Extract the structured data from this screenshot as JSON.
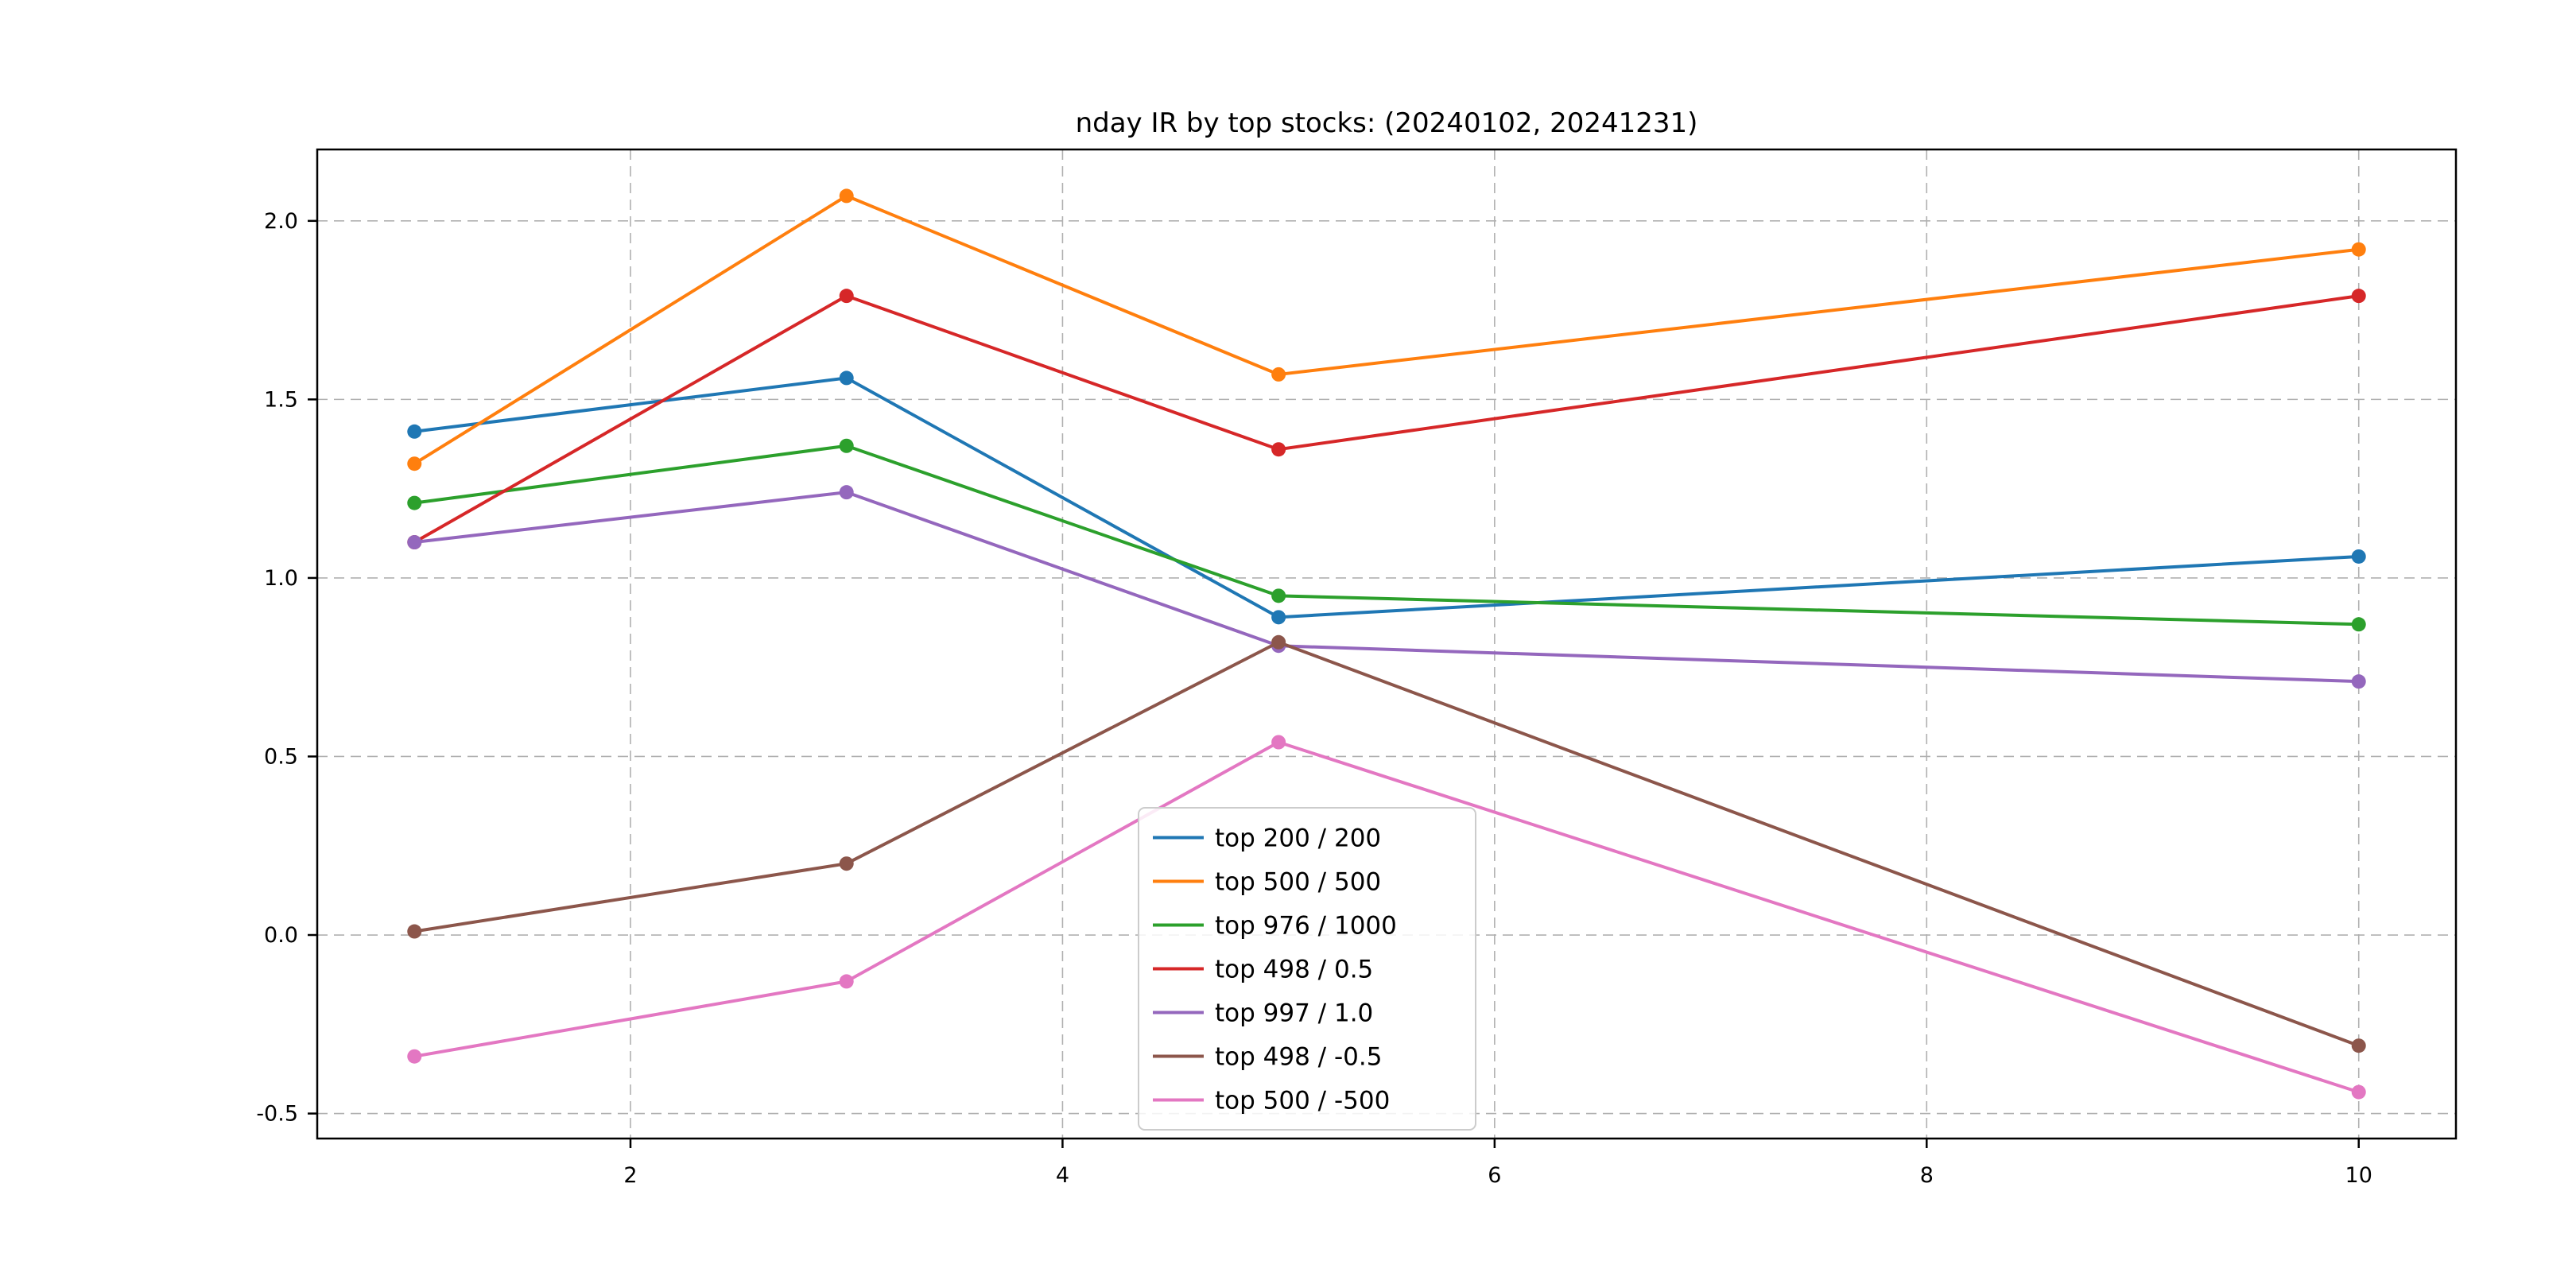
{
  "chart_data": {
    "type": "line",
    "title": "nday IR by top stocks: (20240102, 20241231)",
    "x": [
      1,
      3,
      5,
      10
    ],
    "series": [
      {
        "name": "top 200 / 200",
        "color": "#1f77b4",
        "values": [
          1.41,
          1.56,
          0.89,
          1.06
        ]
      },
      {
        "name": "top 500 / 500",
        "color": "#ff7f0e",
        "values": [
          1.32,
          2.07,
          1.57,
          1.92
        ]
      },
      {
        "name": "top 976 / 1000",
        "color": "#2ca02c",
        "values": [
          1.21,
          1.37,
          0.95,
          0.87
        ]
      },
      {
        "name": "top 498 / 0.5",
        "color": "#d62728",
        "values": [
          1.1,
          1.79,
          1.36,
          1.79
        ]
      },
      {
        "name": "top 997 / 1.0",
        "color": "#9467bd",
        "values": [
          1.1,
          1.24,
          0.81,
          0.71
        ]
      },
      {
        "name": "top 498 / -0.5",
        "color": "#8c564b",
        "values": [
          0.01,
          0.2,
          0.82,
          -0.31
        ]
      },
      {
        "name": "top 500 / -500",
        "color": "#e377c2",
        "values": [
          -0.34,
          -0.13,
          0.54,
          -0.44
        ]
      }
    ],
    "xticks": [
      2,
      4,
      6,
      8,
      10
    ],
    "xtick_labels": [
      "2",
      "4",
      "6",
      "8",
      "10"
    ],
    "yticks": [
      -0.5,
      0.0,
      0.5,
      1.0,
      1.5,
      2.0
    ],
    "ytick_labels": [
      "-0.5",
      "0.0",
      "0.5",
      "1.0",
      "1.5",
      "2.0"
    ],
    "xlim": [
      0.55,
      10.45
    ],
    "ylim": [
      -0.57,
      2.2
    ],
    "grid": true,
    "grid_color": "#b0b0b0",
    "axes_edge_color": "#000000",
    "legend_position": "lower-center-inside",
    "legend_entries": [
      "top 200 / 200",
      "top 500 / 500",
      "top 976 / 1000",
      "top 498 / 0.5",
      "top 997 / 1.0",
      "top 498 / -0.5",
      "top 500 / -500"
    ]
  }
}
